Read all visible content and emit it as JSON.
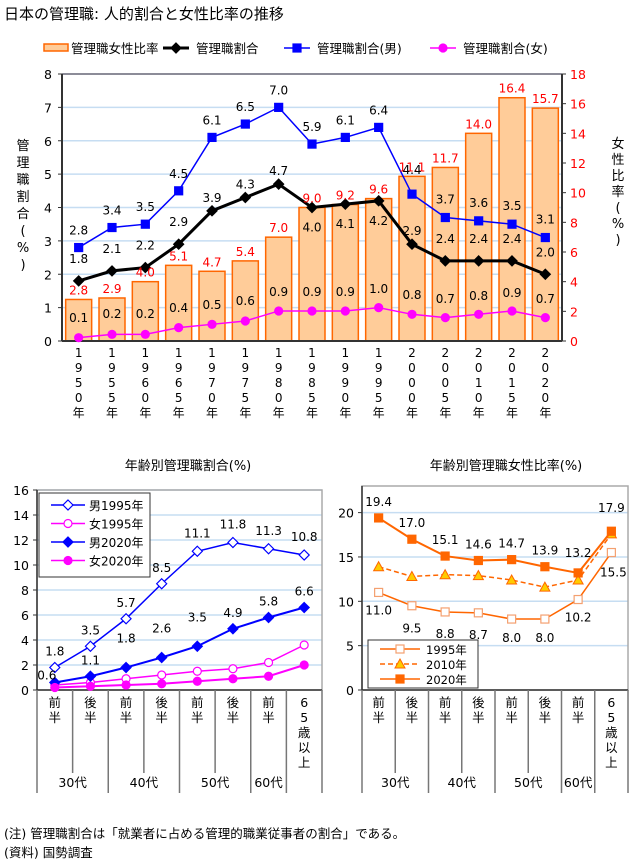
{
  "title": "日本の管理職: 人的割合と女性比率の推移",
  "notes": [
    "(注) 管理職割合は「就業者に占める管理的職業従事者の割合」である。",
    "(資料) 国勢調査"
  ],
  "colors": {
    "bar_fill": "#FFCC99",
    "bar_stroke": "#FF6600",
    "total": "#000000",
    "male": "#0000FF",
    "female": "#FF00FF",
    "red_label": "#FF0000",
    "grid": "#C6DDF2",
    "orange": "#FF6600",
    "tri_fill": "#FFCC00"
  },
  "chart_data": [
    {
      "id": "top",
      "type": "bar+line",
      "title": "日本の管理職: 人的割合と女性比率の推移",
      "legend_position": "top",
      "categories": [
        "1950年",
        "1955年",
        "1960年",
        "1965年",
        "1970年",
        "1975年",
        "1980年",
        "1985年",
        "1990年",
        "1995年",
        "2000年",
        "2005年",
        "2010年",
        "2015年",
        "2020年"
      ],
      "category_glyphs": [
        [
          "1",
          "9",
          "5",
          "0",
          "年"
        ],
        [
          "1",
          "9",
          "5",
          "5",
          "年"
        ],
        [
          "1",
          "9",
          "6",
          "0",
          "年"
        ],
        [
          "1",
          "9",
          "6",
          "5",
          "年"
        ],
        [
          "1",
          "9",
          "7",
          "0",
          "年"
        ],
        [
          "1",
          "9",
          "7",
          "5",
          "年"
        ],
        [
          "1",
          "9",
          "8",
          "0",
          "年"
        ],
        [
          "1",
          "9",
          "8",
          "5",
          "年"
        ],
        [
          "1",
          "9",
          "9",
          "0",
          "年"
        ],
        [
          "1",
          "9",
          "9",
          "5",
          "年"
        ],
        [
          "2",
          "0",
          "0",
          "0",
          "年"
        ],
        [
          "2",
          "0",
          "0",
          "5",
          "年"
        ],
        [
          "2",
          "0",
          "1",
          "0",
          "年"
        ],
        [
          "2",
          "0",
          "1",
          "5",
          "年"
        ],
        [
          "2",
          "0",
          "2",
          "0",
          "年"
        ]
      ],
      "ylabel_left": "管理職割合(%)",
      "ylabel_left_glyphs": [
        "管",
        "理",
        "職",
        "割",
        "合",
        "(",
        "%",
        ")"
      ],
      "ylabel_right": "女性比率(%)",
      "ylabel_right_glyphs": [
        "女",
        "性",
        "比",
        "率",
        "(",
        "%",
        ")"
      ],
      "ylim_left": [
        0,
        8
      ],
      "ylim_right": [
        0,
        18
      ],
      "yticks_left": [
        "0",
        "1",
        "2",
        "3",
        "4",
        "5",
        "6",
        "7",
        "8"
      ],
      "yticks_right": [
        "0",
        "2",
        "4",
        "6",
        "8",
        "10",
        "12",
        "14",
        "16",
        "18"
      ],
      "grid": true,
      "series": [
        {
          "name": "管理職女性比率",
          "kind": "bar",
          "axis": "right",
          "values": [
            2.8,
            2.9,
            4.0,
            5.1,
            4.7,
            5.4,
            7.0,
            9.0,
            9.2,
            9.6,
            11.1,
            11.7,
            14.0,
            16.4,
            15.7
          ],
          "labels": [
            "2.8",
            "2.9",
            "4.0",
            "5.1",
            "4.7",
            "5.4",
            "7.0",
            "9.0",
            "9.2",
            "9.6",
            "11.1",
            "11.7",
            "14.0",
            "16.4",
            "15.7"
          ]
        },
        {
          "name": "管理職割合",
          "kind": "line",
          "axis": "left",
          "marker": "diamond",
          "values": [
            1.8,
            2.1,
            2.2,
            2.9,
            3.9,
            4.3,
            4.7,
            4.0,
            4.1,
            4.2,
            2.9,
            2.4,
            2.4,
            2.4,
            2.0
          ],
          "labels": [
            "1.8",
            "2.1",
            "2.2",
            "2.9",
            "3.9",
            "4.3",
            "4.7",
            "4.0",
            "4.1",
            "4.2",
            "2.9",
            "2.4",
            "2.4",
            "2.4",
            "2.0"
          ]
        },
        {
          "name": "管理職割合(男)",
          "kind": "line",
          "axis": "left",
          "marker": "square",
          "values": [
            2.8,
            3.4,
            3.5,
            4.5,
            6.1,
            6.5,
            7.0,
            5.9,
            6.1,
            6.4,
            4.4,
            3.7,
            3.6,
            3.5,
            3.1
          ],
          "labels": [
            "2.8",
            "3.4",
            "3.5",
            "4.5",
            "6.1",
            "6.5",
            "7.0",
            "5.9",
            "6.1",
            "6.4",
            "4.4",
            "3.7",
            "3.6",
            "3.5",
            "3.1"
          ]
        },
        {
          "name": "管理職割合(女)",
          "kind": "line",
          "axis": "left",
          "marker": "circle",
          "values": [
            0.1,
            0.2,
            0.2,
            0.4,
            0.5,
            0.6,
            0.9,
            0.9,
            0.9,
            1.0,
            0.8,
            0.7,
            0.8,
            0.9,
            0.7
          ],
          "labels": [
            "0.1",
            "0.2",
            "0.2",
            "0.4",
            "0.5",
            "0.6",
            "0.9",
            "0.9",
            "0.9",
            "1.0",
            "0.8",
            "0.7",
            "0.8",
            "0.9",
            "0.7"
          ]
        }
      ]
    },
    {
      "id": "bottom-left",
      "type": "line",
      "title": "年齢別管理職割合(%)",
      "legend_position": "top-left",
      "categories": [
        "30代前半",
        "30代後半",
        "40代前半",
        "40代後半",
        "50代前半",
        "50代後半",
        "60代前半",
        "65歳以上"
      ],
      "category_glyphs": [
        [
          "前",
          "半"
        ],
        [
          "後",
          "半"
        ],
        [
          "前",
          "半"
        ],
        [
          "後",
          "半"
        ],
        [
          "前",
          "半"
        ],
        [
          "後",
          "半"
        ],
        [
          "前",
          "半"
        ],
        [
          "6",
          "5",
          "歳",
          "以",
          "上"
        ]
      ],
      "groups": [
        "30代",
        "40代",
        "50代",
        "60代"
      ],
      "ylim": [
        0,
        16
      ],
      "yticks": [
        "0",
        "2",
        "4",
        "6",
        "8",
        "10",
        "12",
        "14",
        "16"
      ],
      "grid": true,
      "series": [
        {
          "name": "男1995年",
          "marker": "diamond-open",
          "color": "#0000FF",
          "values": [
            1.8,
            3.5,
            5.7,
            8.5,
            11.1,
            11.8,
            11.3,
            10.8
          ],
          "labels": [
            "1.8",
            "3.5",
            "5.7",
            "8.5",
            "11.1",
            "11.8",
            "11.3",
            "10.8"
          ]
        },
        {
          "name": "女1995年",
          "marker": "circle-open",
          "color": "#FF00FF",
          "values": [
            0.4,
            0.6,
            0.9,
            1.2,
            1.5,
            1.7,
            2.2,
            3.6
          ]
        },
        {
          "name": "男2020年",
          "marker": "diamond",
          "color": "#0000FF",
          "values": [
            0.6,
            1.1,
            1.8,
            2.6,
            3.5,
            4.9,
            5.8,
            6.6
          ],
          "labels": [
            "0.6",
            "1.1",
            "1.8",
            "2.6",
            "3.5",
            "4.9",
            "5.8",
            "6.6"
          ]
        },
        {
          "name": "女2020年",
          "marker": "circle",
          "color": "#FF00FF",
          "values": [
            0.2,
            0.3,
            0.4,
            0.5,
            0.7,
            0.9,
            1.1,
            2.0
          ]
        }
      ]
    },
    {
      "id": "bottom-right",
      "type": "line",
      "title": "年齢別管理職女性比率(%)",
      "legend_position": "bottom-left",
      "categories": [
        "30代前半",
        "30代後半",
        "40代前半",
        "40代後半",
        "50代前半",
        "50代後半",
        "60代前半",
        "65歳以上"
      ],
      "category_glyphs": [
        [
          "前",
          "半"
        ],
        [
          "後",
          "半"
        ],
        [
          "前",
          "半"
        ],
        [
          "後",
          "半"
        ],
        [
          "前",
          "半"
        ],
        [
          "後",
          "半"
        ],
        [
          "前",
          "半"
        ],
        [
          "6",
          "5",
          "歳",
          "以",
          "上"
        ]
      ],
      "groups": [
        "30代",
        "40代",
        "50代",
        "60代"
      ],
      "ylim": [
        0,
        23
      ],
      "yticks": [
        "0",
        "5",
        "10",
        "15",
        "20"
      ],
      "grid": true,
      "series": [
        {
          "name": "1995年",
          "marker": "square-open",
          "dash": false,
          "values": [
            11.0,
            9.5,
            8.8,
            8.7,
            8.0,
            8.0,
            10.2,
            15.5
          ],
          "labels": [
            "11.0",
            "9.5",
            "8.8",
            "8.7",
            "8.0",
            "8.0",
            "10.2",
            "15.5"
          ]
        },
        {
          "name": "2010年",
          "marker": "triangle",
          "dash": true,
          "values": [
            13.9,
            12.8,
            13.0,
            12.9,
            12.4,
            11.6,
            12.4,
            17.6
          ]
        },
        {
          "name": "2020年",
          "marker": "square",
          "dash": false,
          "values": [
            19.4,
            17.0,
            15.1,
            14.6,
            14.7,
            13.9,
            13.2,
            17.9
          ],
          "labels": [
            "19.4",
            "17.0",
            "15.1",
            "14.6",
            "14.7",
            "13.9",
            "13.2",
            "17.9"
          ]
        }
      ]
    }
  ]
}
